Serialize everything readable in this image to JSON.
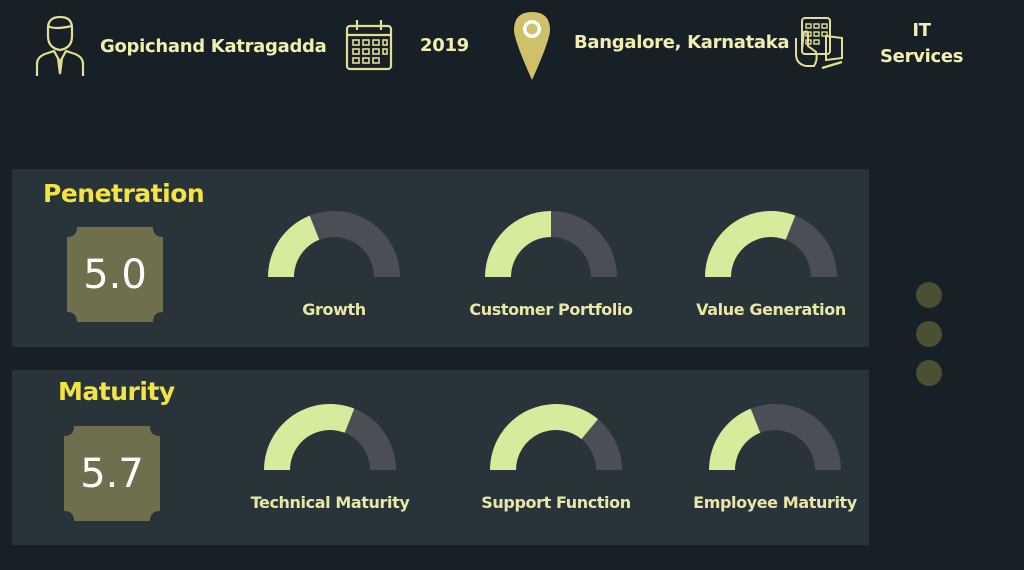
{
  "header": {
    "name": "Gopichand Katragadda",
    "year": "2019",
    "location": "Bangalore, Karnataka",
    "industry_line1": "IT",
    "industry_line2": "Services",
    "icons": [
      "person-icon",
      "calendar-icon",
      "location-pin-icon",
      "touch-device-icon"
    ]
  },
  "sections": [
    {
      "title": "Penetration",
      "score": "5.0",
      "gauges": [
        {
          "label": "Growth",
          "value": 0.38
        },
        {
          "label": "Customer Portfolio",
          "value": 0.5
        },
        {
          "label": "Value Generation",
          "value": 0.62
        }
      ]
    },
    {
      "title": "Maturity",
      "score": "5.7",
      "gauges": [
        {
          "label": "Technical Maturity",
          "value": 0.62
        },
        {
          "label": "Support Function",
          "value": 0.72
        },
        {
          "label": "Employee Maturity",
          "value": 0.38
        }
      ]
    }
  ],
  "colors": {
    "accent_title": "#f4e43f",
    "gauge_fill": "#d6eb9b",
    "gauge_track": "#4b4e57",
    "badge": "#6f6f4e",
    "panel": "#28343a",
    "background": "#172026"
  },
  "pager": {
    "dots": 3
  }
}
